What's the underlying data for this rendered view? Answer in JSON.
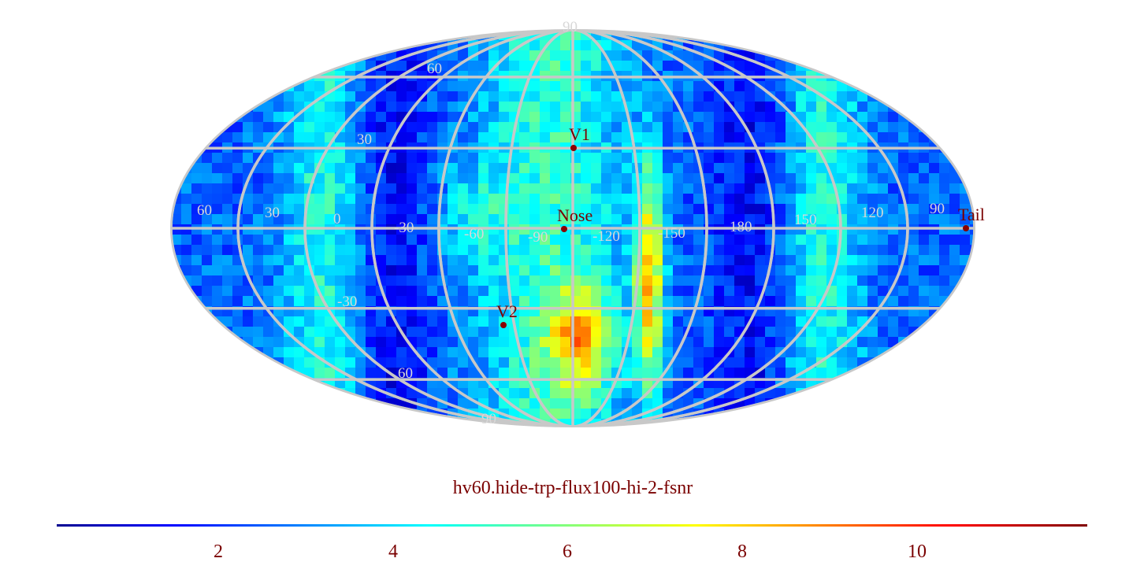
{
  "map_title": "hv60.hide-trp-flux100-hi-2-fsnr",
  "projection": "Mollweide",
  "colormap": "jet",
  "grid_color": "#c8c8c8",
  "marker_color": "#8b0000",
  "latitude_labels": [
    "90",
    "60",
    "30",
    "-30",
    "60",
    "90"
  ],
  "longitude_labels": [
    "60",
    "30",
    "0",
    "-30",
    "-60",
    "-90",
    "-120",
    "-150",
    "180",
    "150",
    "120",
    "90"
  ],
  "markers": [
    {
      "label": "V1",
      "lon": -112,
      "lat": 34
    },
    {
      "label": "Nose",
      "lon": -104,
      "lat": 0
    },
    {
      "label": "V2",
      "lon": -80,
      "lat": -35
    },
    {
      "label": "Tail",
      "lon": 76,
      "lat": 0
    }
  ],
  "colorbar": {
    "min": 0,
    "max": 12,
    "ticks": [
      "2",
      "4",
      "6",
      "8",
      "10"
    ]
  }
}
